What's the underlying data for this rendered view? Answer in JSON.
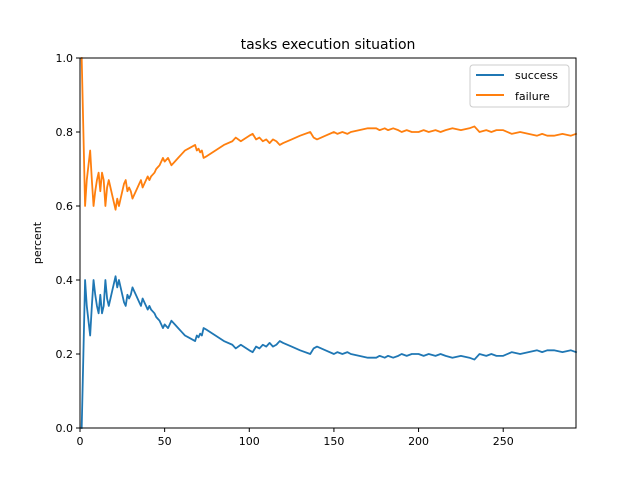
{
  "chart_data": {
    "type": "line",
    "title": "tasks execution situation",
    "xlabel": "",
    "ylabel": "percent",
    "xlim": [
      0,
      293
    ],
    "ylim": [
      0.0,
      1.0
    ],
    "xticks": [
      0,
      50,
      100,
      150,
      200,
      250
    ],
    "xtick_labels": [
      "0",
      "50",
      "100",
      "150",
      "200",
      "250"
    ],
    "yticks": [
      0.0,
      0.2,
      0.4,
      0.6,
      0.8,
      1.0
    ],
    "ytick_labels": [
      "0.0",
      "0.2",
      "0.4",
      "0.6",
      "0.8",
      "1.0"
    ],
    "grid": false,
    "legend_placement": "top-right",
    "series": [
      {
        "name": "success",
        "color": "#1f77b4",
        "x": [
          1,
          2,
          3,
          4,
          5,
          6,
          7,
          8,
          9,
          10,
          11,
          12,
          13,
          14,
          15,
          16,
          17,
          18,
          19,
          20,
          21,
          22,
          23,
          24,
          25,
          26,
          27,
          28,
          29,
          30,
          31,
          32,
          33,
          34,
          35,
          36,
          37,
          38,
          39,
          40,
          41,
          42,
          43,
          44,
          45,
          46,
          47,
          48,
          49,
          50,
          52,
          54,
          56,
          58,
          60,
          62,
          64,
          66,
          68,
          69,
          70,
          71,
          72,
          73,
          75,
          80,
          85,
          90,
          92,
          95,
          100,
          102,
          104,
          106,
          108,
          110,
          112,
          114,
          116,
          118,
          120,
          125,
          130,
          136,
          138,
          140,
          145,
          150,
          152,
          155,
          158,
          160,
          165,
          170,
          175,
          177,
          180,
          182,
          185,
          188,
          190,
          193,
          196,
          200,
          203,
          206,
          210,
          213,
          216,
          220,
          225,
          230,
          233,
          236,
          240,
          243,
          246,
          250,
          255,
          260,
          265,
          270,
          273,
          276,
          280,
          285,
          290,
          293
        ],
        "values": [
          0.0,
          0.2,
          0.4,
          0.33,
          0.29,
          0.25,
          0.33,
          0.4,
          0.36,
          0.33,
          0.31,
          0.36,
          0.31,
          0.33,
          0.4,
          0.35,
          0.33,
          0.35,
          0.37,
          0.39,
          0.41,
          0.38,
          0.4,
          0.38,
          0.36,
          0.34,
          0.33,
          0.36,
          0.35,
          0.36,
          0.38,
          0.37,
          0.36,
          0.35,
          0.34,
          0.33,
          0.35,
          0.34,
          0.33,
          0.32,
          0.33,
          0.32,
          0.315,
          0.31,
          0.3,
          0.295,
          0.29,
          0.28,
          0.27,
          0.28,
          0.27,
          0.29,
          0.28,
          0.27,
          0.26,
          0.25,
          0.245,
          0.24,
          0.235,
          0.25,
          0.245,
          0.255,
          0.25,
          0.27,
          0.265,
          0.25,
          0.235,
          0.225,
          0.215,
          0.225,
          0.21,
          0.205,
          0.22,
          0.215,
          0.225,
          0.22,
          0.23,
          0.22,
          0.225,
          0.235,
          0.23,
          0.22,
          0.21,
          0.2,
          0.215,
          0.22,
          0.21,
          0.2,
          0.205,
          0.2,
          0.205,
          0.2,
          0.195,
          0.19,
          0.19,
          0.195,
          0.19,
          0.195,
          0.19,
          0.195,
          0.2,
          0.195,
          0.2,
          0.2,
          0.195,
          0.2,
          0.195,
          0.2,
          0.195,
          0.19,
          0.195,
          0.19,
          0.185,
          0.2,
          0.195,
          0.2,
          0.195,
          0.195,
          0.205,
          0.2,
          0.205,
          0.21,
          0.205,
          0.21,
          0.21,
          0.205,
          0.21,
          0.205
        ]
      },
      {
        "name": "failure",
        "color": "#ff7f0e",
        "x": [
          1,
          2,
          3,
          4,
          5,
          6,
          7,
          8,
          9,
          10,
          11,
          12,
          13,
          14,
          15,
          16,
          17,
          18,
          19,
          20,
          21,
          22,
          23,
          24,
          25,
          26,
          27,
          28,
          29,
          30,
          31,
          32,
          33,
          34,
          35,
          36,
          37,
          38,
          39,
          40,
          41,
          42,
          43,
          44,
          45,
          46,
          47,
          48,
          49,
          50,
          52,
          54,
          56,
          58,
          60,
          62,
          64,
          66,
          68,
          69,
          70,
          71,
          72,
          73,
          75,
          80,
          85,
          90,
          92,
          95,
          100,
          102,
          104,
          106,
          108,
          110,
          112,
          114,
          116,
          118,
          120,
          125,
          130,
          136,
          138,
          140,
          145,
          150,
          152,
          155,
          158,
          160,
          165,
          170,
          175,
          177,
          180,
          182,
          185,
          188,
          190,
          193,
          196,
          200,
          203,
          206,
          210,
          213,
          216,
          220,
          225,
          230,
          233,
          236,
          240,
          243,
          246,
          250,
          255,
          260,
          265,
          270,
          273,
          276,
          280,
          285,
          290,
          293
        ],
        "values": [
          1.0,
          0.8,
          0.6,
          0.67,
          0.71,
          0.75,
          0.67,
          0.6,
          0.64,
          0.67,
          0.69,
          0.64,
          0.69,
          0.67,
          0.6,
          0.65,
          0.67,
          0.65,
          0.63,
          0.61,
          0.59,
          0.62,
          0.6,
          0.62,
          0.64,
          0.66,
          0.67,
          0.64,
          0.65,
          0.64,
          0.62,
          0.63,
          0.64,
          0.65,
          0.66,
          0.67,
          0.65,
          0.66,
          0.67,
          0.68,
          0.67,
          0.68,
          0.685,
          0.69,
          0.7,
          0.705,
          0.71,
          0.72,
          0.73,
          0.72,
          0.73,
          0.71,
          0.72,
          0.73,
          0.74,
          0.75,
          0.755,
          0.76,
          0.765,
          0.75,
          0.755,
          0.745,
          0.75,
          0.73,
          0.735,
          0.75,
          0.765,
          0.775,
          0.785,
          0.775,
          0.79,
          0.795,
          0.78,
          0.785,
          0.775,
          0.78,
          0.77,
          0.78,
          0.775,
          0.765,
          0.77,
          0.78,
          0.79,
          0.8,
          0.785,
          0.78,
          0.79,
          0.8,
          0.795,
          0.8,
          0.795,
          0.8,
          0.805,
          0.81,
          0.81,
          0.805,
          0.81,
          0.805,
          0.81,
          0.805,
          0.8,
          0.805,
          0.8,
          0.8,
          0.805,
          0.8,
          0.805,
          0.8,
          0.805,
          0.81,
          0.805,
          0.81,
          0.815,
          0.8,
          0.805,
          0.8,
          0.805,
          0.805,
          0.795,
          0.8,
          0.795,
          0.79,
          0.795,
          0.79,
          0.79,
          0.795,
          0.79,
          0.795
        ]
      }
    ]
  }
}
